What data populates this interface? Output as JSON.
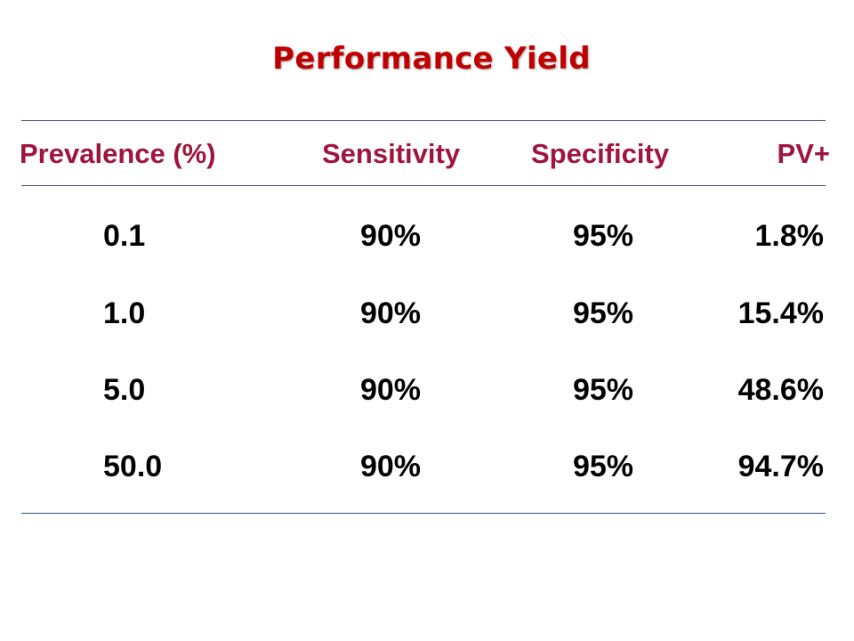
{
  "title": "Performance Yield",
  "table": {
    "headers": [
      "Prevalence (%)",
      "Sensitivity",
      "Specificity",
      "PV+"
    ],
    "rows": [
      [
        "0.1",
        "90%",
        "95%",
        "1.8%"
      ],
      [
        "1.0",
        "90%",
        "95%",
        "15.4%"
      ],
      [
        "5.0",
        "90%",
        "95%",
        "48.6%"
      ],
      [
        "50.0",
        "90%",
        "95%",
        "94.7%"
      ]
    ]
  },
  "colors": {
    "title": "#c00000",
    "header": "#a0153e",
    "rule": "#3b4f7d",
    "cell": "#000000"
  }
}
